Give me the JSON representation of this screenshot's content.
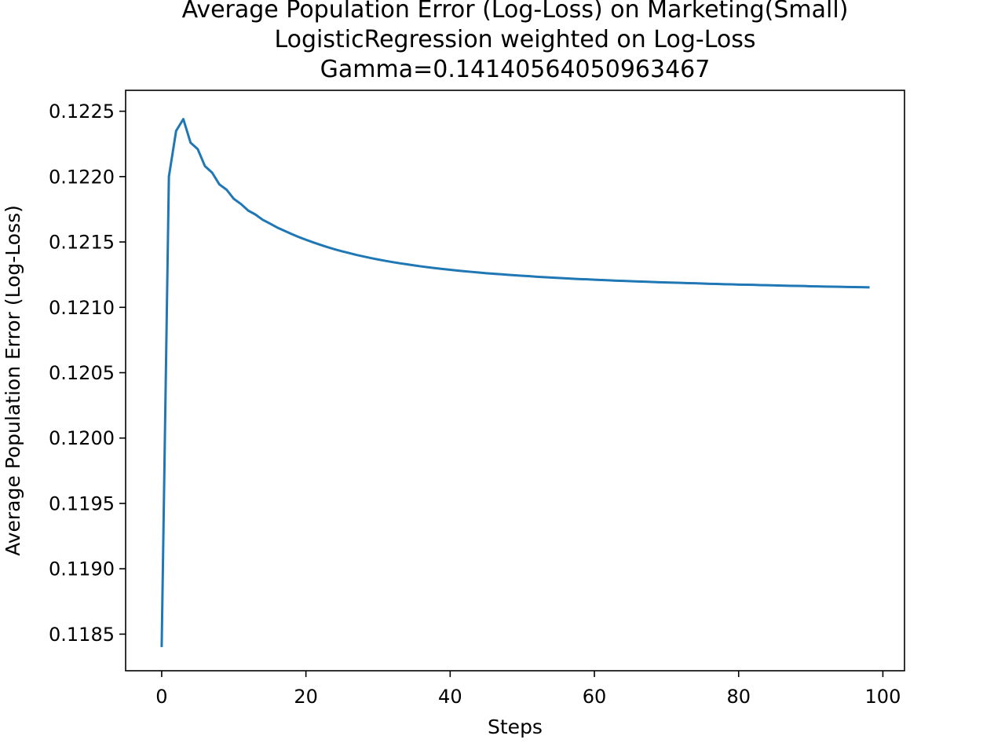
{
  "chart_data": {
    "type": "line",
    "title": [
      "Average Population Error (Log-Loss) on Marketing(Small)",
      "LogisticRegression weighted on Log-Loss",
      "Gamma=0.14140564050963467"
    ],
    "xlabel": "Steps",
    "ylabel": "Average Population Error (Log-Loss)",
    "xlim": [
      -5,
      103
    ],
    "ylim": [
      0.11822,
      0.12266
    ],
    "x_ticks": [
      0,
      20,
      40,
      60,
      80,
      100
    ],
    "x_tick_labels": [
      "0",
      "20",
      "40",
      "60",
      "80",
      "100"
    ],
    "y_ticks": [
      0.1185,
      0.119,
      0.1195,
      0.12,
      0.1205,
      0.121,
      0.1215,
      0.122,
      0.1225
    ],
    "y_tick_labels": [
      "0.1185",
      "0.1190",
      "0.1195",
      "0.1200",
      "0.1205",
      "0.1210",
      "0.1215",
      "0.1220",
      "0.1225"
    ],
    "grid": false,
    "legend": "none",
    "series": [
      {
        "color": "#1f77b4",
        "x": [
          0,
          1,
          2,
          3,
          4,
          5,
          6,
          7,
          8,
          9,
          10,
          11,
          12,
          13,
          14,
          15,
          16,
          17,
          18,
          19,
          20,
          21,
          22,
          23,
          24,
          25,
          26,
          27,
          28,
          29,
          30,
          31,
          32,
          33,
          34,
          35,
          36,
          37,
          38,
          39,
          40,
          41,
          42,
          43,
          44,
          45,
          46,
          47,
          48,
          49,
          50,
          51,
          52,
          53,
          54,
          55,
          56,
          57,
          58,
          59,
          60,
          61,
          62,
          63,
          64,
          65,
          66,
          67,
          68,
          69,
          70,
          71,
          72,
          73,
          74,
          75,
          76,
          77,
          78,
          79,
          80,
          81,
          82,
          83,
          84,
          85,
          86,
          87,
          88,
          89,
          90,
          91,
          92,
          93,
          94,
          95,
          96,
          97,
          98
        ],
        "y": [
          0.11841,
          0.122,
          0.12235,
          0.12244,
          0.12226,
          0.12221,
          0.12208,
          0.12203,
          0.12194,
          0.1219,
          0.12183,
          0.12179,
          0.12174,
          0.12171,
          0.12167,
          0.121641,
          0.121611,
          0.121586,
          0.121561,
          0.121538,
          0.121517,
          0.121497,
          0.121478,
          0.12146,
          0.121444,
          0.121429,
          0.121415,
          0.121401,
          0.121389,
          0.121377,
          0.121366,
          0.121356,
          0.121346,
          0.121337,
          0.121329,
          0.121321,
          0.121313,
          0.121306,
          0.121299,
          0.121293,
          0.121287,
          0.121281,
          0.121276,
          0.121271,
          0.121266,
          0.121261,
          0.121257,
          0.121253,
          0.121249,
          0.121245,
          0.121241,
          0.121238,
          0.121234,
          0.121231,
          0.121228,
          0.121225,
          0.121222,
          0.121219,
          0.121216,
          0.121214,
          0.121211,
          0.121209,
          0.121207,
          0.121204,
          0.121202,
          0.1212,
          0.121198,
          0.121196,
          0.121194,
          0.121192,
          0.12119,
          0.121189,
          0.121187,
          0.121185,
          0.121184,
          0.121182,
          0.12118,
          0.121179,
          0.121177,
          0.121176,
          0.121174,
          0.121173,
          0.121172,
          0.12117,
          0.121169,
          0.121168,
          0.121166,
          0.121165,
          0.121164,
          0.121163,
          0.121161,
          0.12116,
          0.121159,
          0.121158,
          0.121157,
          0.121156,
          0.121155,
          0.121154,
          0.121153
        ]
      }
    ]
  }
}
